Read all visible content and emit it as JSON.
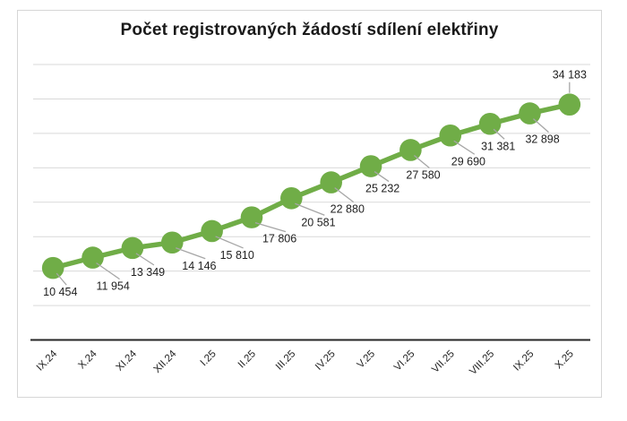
{
  "chart_data": {
    "type": "line",
    "title": "Počet registrovaných žádostí sdílení elektřiny",
    "categories": [
      "IX.24",
      "X.24",
      "XI.24",
      "XII.24",
      "I.25",
      "II.25",
      "III.25",
      "IV.25",
      "V.25",
      "VI.25",
      "VII.25",
      "VIII.25",
      "IX.25",
      "X.25"
    ],
    "values": [
      10454,
      11954,
      13349,
      14146,
      15810,
      17806,
      20581,
      22880,
      25232,
      27580,
      29690,
      31381,
      32898,
      34183
    ],
    "data_labels": [
      "10 454",
      "11 954",
      "13 349",
      "14 146",
      "15 810",
      "17 806",
      "20 581",
      "22 880",
      "25 232",
      "27 580",
      "29 690",
      "31 381",
      "32 898",
      "34 183"
    ],
    "xlabel": "",
    "ylabel": "",
    "ylim": [
      0,
      40000
    ],
    "gridline_step": 5000,
    "grid": true,
    "legend": "none",
    "x_label_rotation_deg": 45,
    "colors": {
      "line": "#70ad47",
      "marker": "#70ad47",
      "grid": "#d9d9d9",
      "axis": "#262626",
      "leader_line": "#a6a6a6",
      "label_text": "#1f1f1f",
      "title_text": "#1a1a1a",
      "frame_border": "#d6d6d6",
      "background": "#ffffff"
    }
  }
}
